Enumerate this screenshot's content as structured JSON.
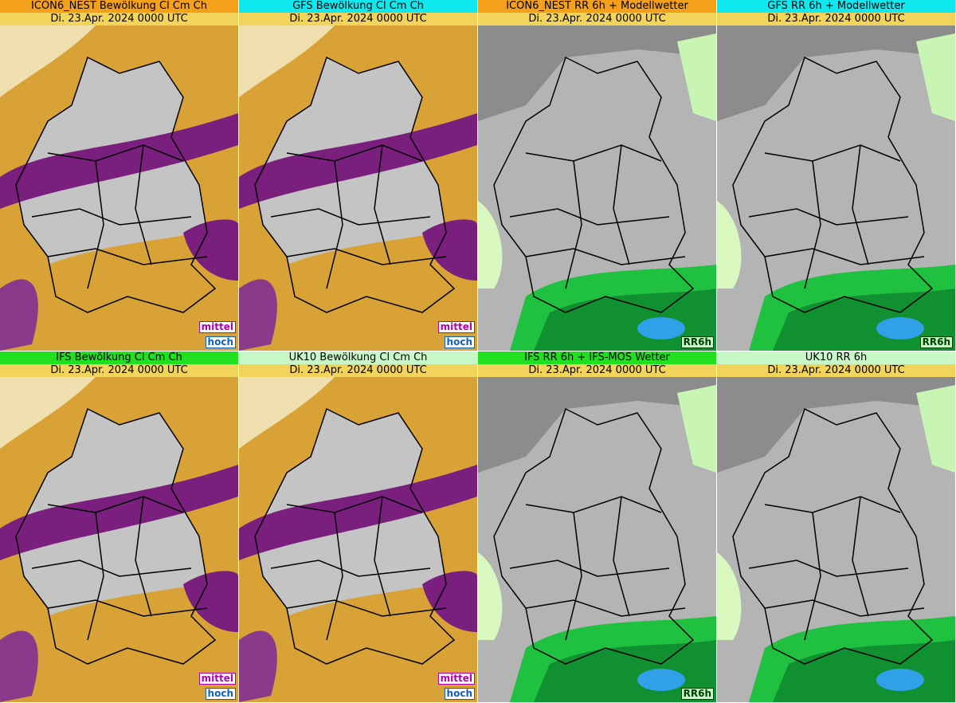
{
  "panels": [
    {
      "title": "ICON6_NEST Bewölkung Cl Cm Ch",
      "date": "Di. 23.Apr. 2024 0000 UTC",
      "labels": [
        "mittel",
        "hoch"
      ]
    },
    {
      "title": "GFS Bewölkung Cl Cm Ch",
      "date": "Di. 23.Apr. 2024 0000 UTC",
      "labels": [
        "mittel",
        "hoch"
      ]
    },
    {
      "title": "ICON6_NEST RR 6h + Modellwetter",
      "date": "Di. 23.Apr. 2024 0000 UTC",
      "labels": [
        "RR6h"
      ]
    },
    {
      "title": "GFS RR 6h + Modellwetter",
      "date": "Di. 23.Apr. 2024 0000 UTC",
      "labels": [
        "RR6h"
      ]
    },
    {
      "title": "IFS Bewölkung Cl Cm Ch",
      "date": "Di. 23.Apr. 2024 0000 UTC",
      "labels": [
        "mittel",
        "hoch"
      ]
    },
    {
      "title": "UK10 Bewölkung Cl Cm Ch",
      "date": "Di. 23.Apr. 2024 0000 UTC",
      "labels": [
        "mittel",
        "hoch"
      ]
    },
    {
      "title": "IFS RR 6h + IFS-MOS Wetter",
      "date": "Di. 23.Apr. 2024 0000 UTC",
      "labels": [
        "RR6h"
      ]
    },
    {
      "title": "UK10 RR 6h",
      "date": "Di. 23.Apr. 2024 0000 UTC",
      "labels": []
    }
  ]
}
